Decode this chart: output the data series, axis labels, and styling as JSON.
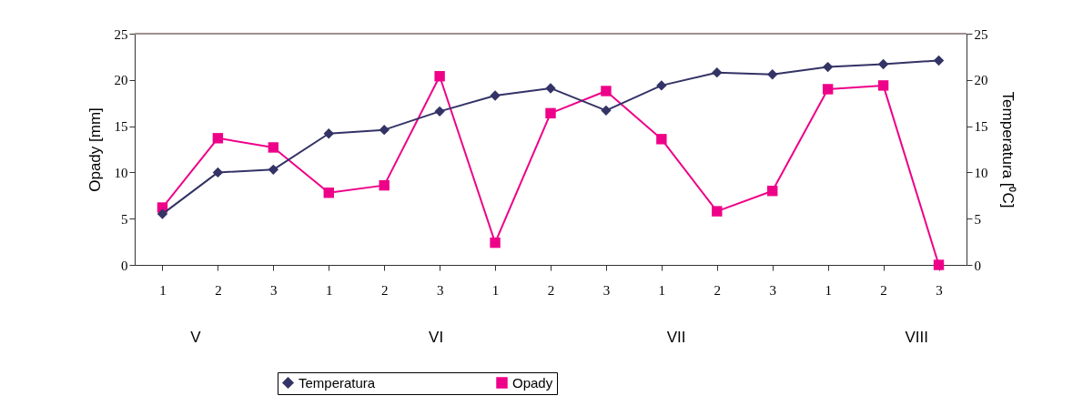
{
  "chart_data": {
    "type": "line",
    "ylabel": "Opady [mm]",
    "y2label": "Temperatura [⁰C]",
    "categories": [
      "1",
      "2",
      "3",
      "1",
      "2",
      "3",
      "1",
      "2",
      "3",
      "1",
      "2",
      "3",
      "1",
      "2",
      "3"
    ],
    "annotations": [
      "V",
      "VI",
      "VII",
      "VIII"
    ],
    "ylim": [
      0,
      25
    ],
    "yticks": [
      0,
      5,
      10,
      15,
      20,
      25
    ],
    "y2lim": [
      0,
      25
    ],
    "y2ticks": [
      0,
      5,
      10,
      15,
      20,
      25
    ],
    "grid": false,
    "legend": "bottom",
    "series": [
      {
        "name": "Temperatura",
        "color": "#333366",
        "marker": "diamond",
        "axis": "y2",
        "values": [
          5.5,
          10.0,
          10.3,
          14.2,
          14.6,
          16.6,
          18.3,
          19.1,
          16.7,
          19.4,
          20.8,
          20.6,
          21.4,
          21.7,
          22.1
        ]
      },
      {
        "name": "Opady",
        "color": "#ee0088",
        "marker": "square",
        "values": [
          6.2,
          13.7,
          12.7,
          7.8,
          8.6,
          20.4,
          2.4,
          16.4,
          18.8,
          13.6,
          5.8,
          8.0,
          19.0,
          19.4,
          0
        ]
      }
    ]
  }
}
